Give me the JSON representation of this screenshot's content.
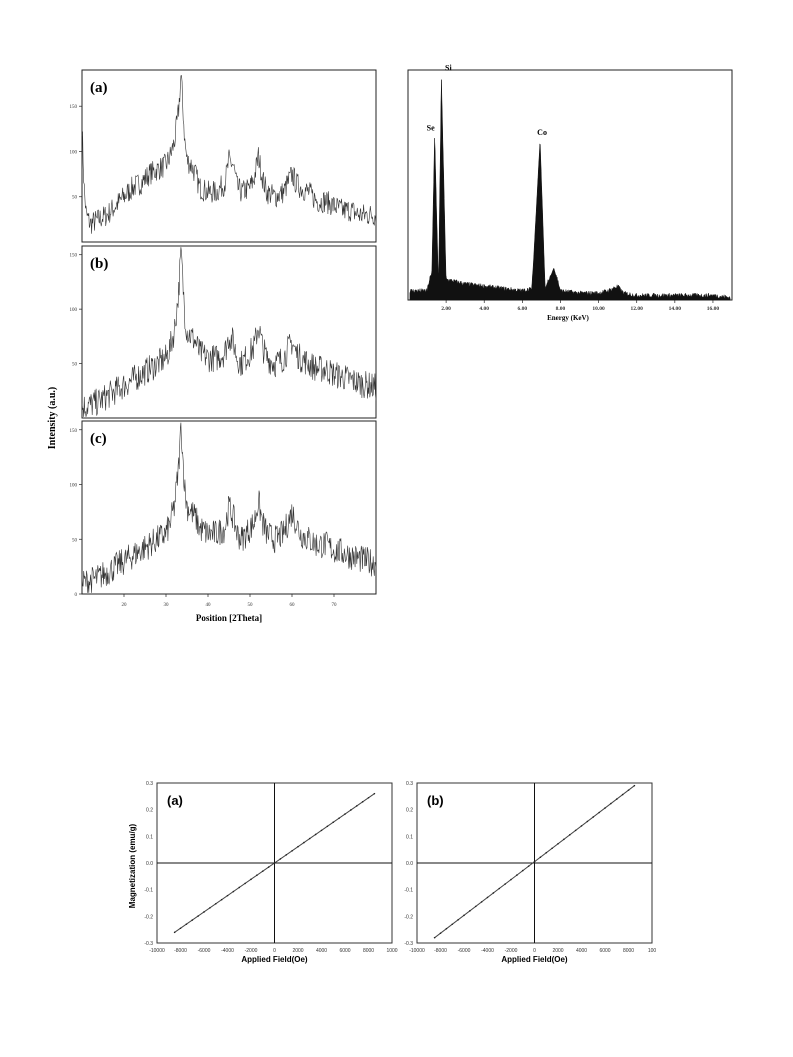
{
  "xrd": {
    "ylabel": "Intensity (a.u.)",
    "xlabel": "Position [2Theta]",
    "x_ticks": [
      20,
      30,
      40,
      50,
      60,
      70
    ],
    "xlim": [
      10,
      80
    ],
    "panels": [
      {
        "label": "(a)",
        "ylim": [
          0,
          190
        ],
        "y_ticks": [
          50,
          100,
          150
        ]
      },
      {
        "label": "(b)",
        "ylim": [
          0,
          158
        ],
        "y_ticks": [
          50,
          100,
          150
        ]
      },
      {
        "label": "(c)",
        "ylim": [
          0,
          158
        ],
        "y_ticks": [
          0,
          50,
          100,
          150
        ]
      }
    ]
  },
  "eds": {
    "xlabel": "Energy (KeV)",
    "x_ticks": [
      "2.00",
      "4.00",
      "6.00",
      "8.00",
      "10.00",
      "12.00",
      "14.00",
      "16.00"
    ],
    "xlim": [
      0,
      17
    ],
    "peak_labels": [
      "Se",
      "Si",
      "Co"
    ]
  },
  "vsm": {
    "ylabel": "Magnetization (emu/g)",
    "xlabel": "Applied Field(Oe)",
    "panels": [
      {
        "label": "(a)",
        "x_ticks": [
          "-10000",
          "-8000",
          "-6000",
          "-4000",
          "-2000",
          "0",
          "2000",
          "4000",
          "6000",
          "8000",
          "1000"
        ],
        "y_ticks": [
          "0.3",
          "0.2",
          "0.1",
          "0.0",
          "-0.1",
          "-0.2",
          "-0.3"
        ]
      },
      {
        "label": "(b)",
        "x_ticks": [
          "-10000",
          "-8000",
          "-6000",
          "-4000",
          "-2000",
          "0",
          "2000",
          "4000",
          "6000",
          "8000",
          "100"
        ],
        "y_ticks": [
          "0.3",
          "0.2",
          "0.1",
          "0.0",
          "-0.1",
          "-0.2",
          "-0.3"
        ]
      }
    ]
  },
  "chart_data": [
    {
      "type": "line",
      "xlabel": "Position [2Theta]",
      "ylabel": "Intensity (a.u.)",
      "xlim": [
        10,
        80
      ],
      "panel": "(a)",
      "ylim": [
        0,
        190
      ],
      "series": [
        {
          "name": "",
          "x": [
            10,
            10.5,
            11,
            12,
            14,
            16,
            18,
            20,
            22,
            24,
            26,
            28,
            30,
            31,
            32,
            33,
            33.6,
            34,
            34.5,
            35,
            36,
            37,
            38,
            40,
            42,
            44,
            45,
            46,
            47,
            48,
            50,
            51,
            52,
            53,
            54,
            56,
            58,
            60,
            61,
            62,
            64,
            66,
            68,
            70,
            72,
            74,
            76,
            78,
            80
          ],
          "values": [
            130,
            60,
            30,
            20,
            25,
            30,
            40,
            50,
            60,
            65,
            75,
            80,
            85,
            95,
            110,
            145,
            185,
            150,
            110,
            90,
            85,
            75,
            60,
            55,
            55,
            65,
            90,
            85,
            60,
            55,
            60,
            70,
            95,
            70,
            55,
            50,
            55,
            75,
            65,
            60,
            55,
            45,
            45,
            40,
            35,
            35,
            30,
            30,
            30
          ]
        }
      ]
    },
    {
      "type": "line",
      "xlabel": "Position [2Theta]",
      "ylabel": "Intensity (a.u.)",
      "xlim": [
        10,
        80
      ],
      "panel": "(b)",
      "ylim": [
        0,
        158
      ],
      "series": [
        {
          "name": "",
          "x": [
            10,
            12,
            14,
            16,
            18,
            20,
            22,
            24,
            26,
            28,
            30,
            31,
            32,
            33,
            33.6,
            34,
            34.5,
            35,
            36,
            37,
            38,
            40,
            42,
            44,
            45,
            46,
            47,
            48,
            50,
            51,
            52,
            53,
            54,
            56,
            58,
            60,
            61,
            62,
            64,
            66,
            68,
            70,
            72,
            74,
            76,
            78,
            80
          ],
          "values": [
            10,
            12,
            15,
            20,
            25,
            30,
            35,
            40,
            45,
            50,
            55,
            65,
            80,
            115,
            155,
            125,
            95,
            80,
            75,
            70,
            60,
            55,
            55,
            60,
            75,
            70,
            55,
            50,
            60,
            65,
            85,
            65,
            55,
            50,
            55,
            70,
            60,
            55,
            50,
            45,
            45,
            40,
            38,
            35,
            32,
            30,
            28
          ]
        }
      ]
    },
    {
      "type": "line",
      "xlabel": "Position [2Theta]",
      "ylabel": "Intensity (a.u.)",
      "xlim": [
        10,
        80
      ],
      "panel": "(c)",
      "ylim": [
        0,
        158
      ],
      "series": [
        {
          "name": "",
          "x": [
            10,
            12,
            14,
            16,
            18,
            20,
            22,
            24,
            26,
            28,
            30,
            31,
            32,
            33,
            33.6,
            34,
            34.5,
            35,
            36,
            37,
            38,
            40,
            42,
            44,
            45,
            46,
            47,
            48,
            50,
            51,
            52,
            53,
            54,
            56,
            58,
            60,
            61,
            62,
            64,
            66,
            68,
            70,
            72,
            74,
            76,
            78,
            80
          ],
          "values": [
            10,
            12,
            15,
            20,
            25,
            30,
            35,
            40,
            45,
            50,
            55,
            65,
            80,
            115,
            155,
            125,
            95,
            80,
            75,
            70,
            60,
            55,
            55,
            60,
            80,
            70,
            55,
            50,
            60,
            65,
            85,
            65,
            55,
            50,
            55,
            75,
            65,
            55,
            50,
            45,
            45,
            40,
            38,
            35,
            32,
            30,
            28
          ]
        }
      ]
    },
    {
      "type": "bar",
      "xlabel": "Energy (KeV)",
      "xlim": [
        0,
        17
      ],
      "ylim": [
        0,
        100
      ],
      "series": [
        {
          "name": "",
          "x": [
            1.0,
            1.25,
            1.4,
            1.6,
            1.75,
            2.0,
            3.0,
            4.0,
            5.0,
            6.0,
            6.5,
            6.93,
            7.2,
            7.65,
            8.0,
            9.0,
            10.0,
            10.5,
            11.0,
            11.3,
            12.0,
            14.0,
            16.0,
            17.0
          ],
          "values": [
            3,
            12,
            72,
            5,
            98,
            8,
            6,
            5,
            4,
            3,
            4,
            70,
            4,
            14,
            3,
            2,
            2,
            3,
            5,
            2,
            1,
            1,
            1,
            0
          ]
        }
      ],
      "peak_labels": [
        {
          "text": "Se",
          "x": 1.4
        },
        {
          "text": "Si",
          "x": 1.75
        },
        {
          "text": "Co",
          "x": 6.93
        }
      ]
    },
    {
      "type": "line",
      "xlabel": "Applied Field(Oe)",
      "ylabel": "Magnetization (emu/g)",
      "panel": "(a)",
      "xlim": [
        -10000,
        10000
      ],
      "ylim": [
        -0.3,
        0.3
      ],
      "series": [
        {
          "name": "",
          "x": [
            -8500,
            8500
          ],
          "values": [
            -0.26,
            0.26
          ]
        }
      ]
    },
    {
      "type": "line",
      "xlabel": "Applied Field(Oe)",
      "ylabel": "",
      "panel": "(b)",
      "xlim": [
        -10000,
        10000
      ],
      "ylim": [
        -0.3,
        0.3
      ],
      "series": [
        {
          "name": "",
          "x": [
            -8500,
            8500
          ],
          "values": [
            -0.28,
            0.29
          ]
        }
      ]
    }
  ]
}
